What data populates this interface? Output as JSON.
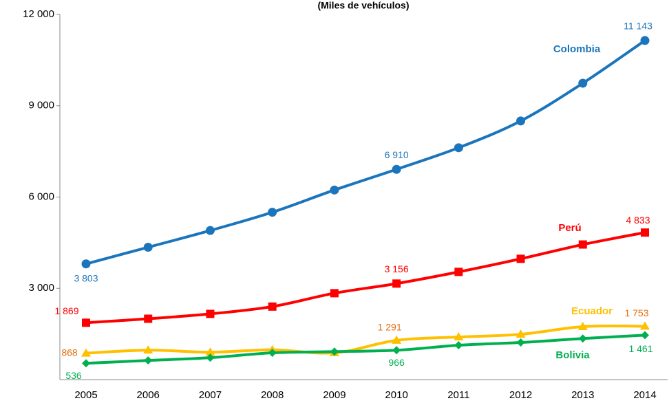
{
  "chart_data": {
    "type": "line",
    "subtitle": "(Miles de vehículos)",
    "categories": [
      "2005",
      "2006",
      "2007",
      "2008",
      "2009",
      "2010",
      "2011",
      "2012",
      "2013",
      "2014"
    ],
    "series": [
      {
        "name": "Colombia",
        "color": "#1b75bc",
        "marker": "circle",
        "values": [
          3803,
          4350,
          4900,
          5500,
          6230,
          6910,
          7620,
          8500,
          9740,
          11143
        ],
        "value_labels": [
          "3 803",
          null,
          null,
          null,
          null,
          "6 910",
          null,
          null,
          null,
          "11 143"
        ]
      },
      {
        "name": "Perú",
        "color": "#ff0000",
        "marker": "square",
        "values": [
          1869,
          2000,
          2160,
          2400,
          2840,
          3156,
          3540,
          3970,
          4440,
          4833
        ],
        "value_labels": [
          "1 869",
          null,
          null,
          null,
          null,
          "3 156",
          null,
          null,
          null,
          "4 833"
        ]
      },
      {
        "name": "Ecuador",
        "color": "#ffc000",
        "marker": "triangle",
        "values": [
          868,
          970,
          900,
          980,
          880,
          1291,
          1400,
          1490,
          1740,
          1753
        ],
        "value_labels": [
          "868",
          null,
          null,
          null,
          null,
          "1 291",
          null,
          null,
          null,
          "1 753"
        ]
      },
      {
        "name": "Bolivia",
        "color": "#00b050",
        "marker": "diamond",
        "values": [
          536,
          630,
          720,
          880,
          920,
          966,
          1130,
          1220,
          1350,
          1461
        ],
        "value_labels": [
          "536",
          null,
          null,
          null,
          null,
          "966",
          null,
          null,
          null,
          "1 461"
        ]
      }
    ],
    "ylim": [
      0,
      12000
    ],
    "yticks": [
      {
        "value": 3000,
        "label": "3 000"
      },
      {
        "value": 6000,
        "label": "6 000"
      },
      {
        "value": 9000,
        "label": "9 000"
      },
      {
        "value": 12000,
        "label": "12 000"
      }
    ],
    "grid": false
  }
}
